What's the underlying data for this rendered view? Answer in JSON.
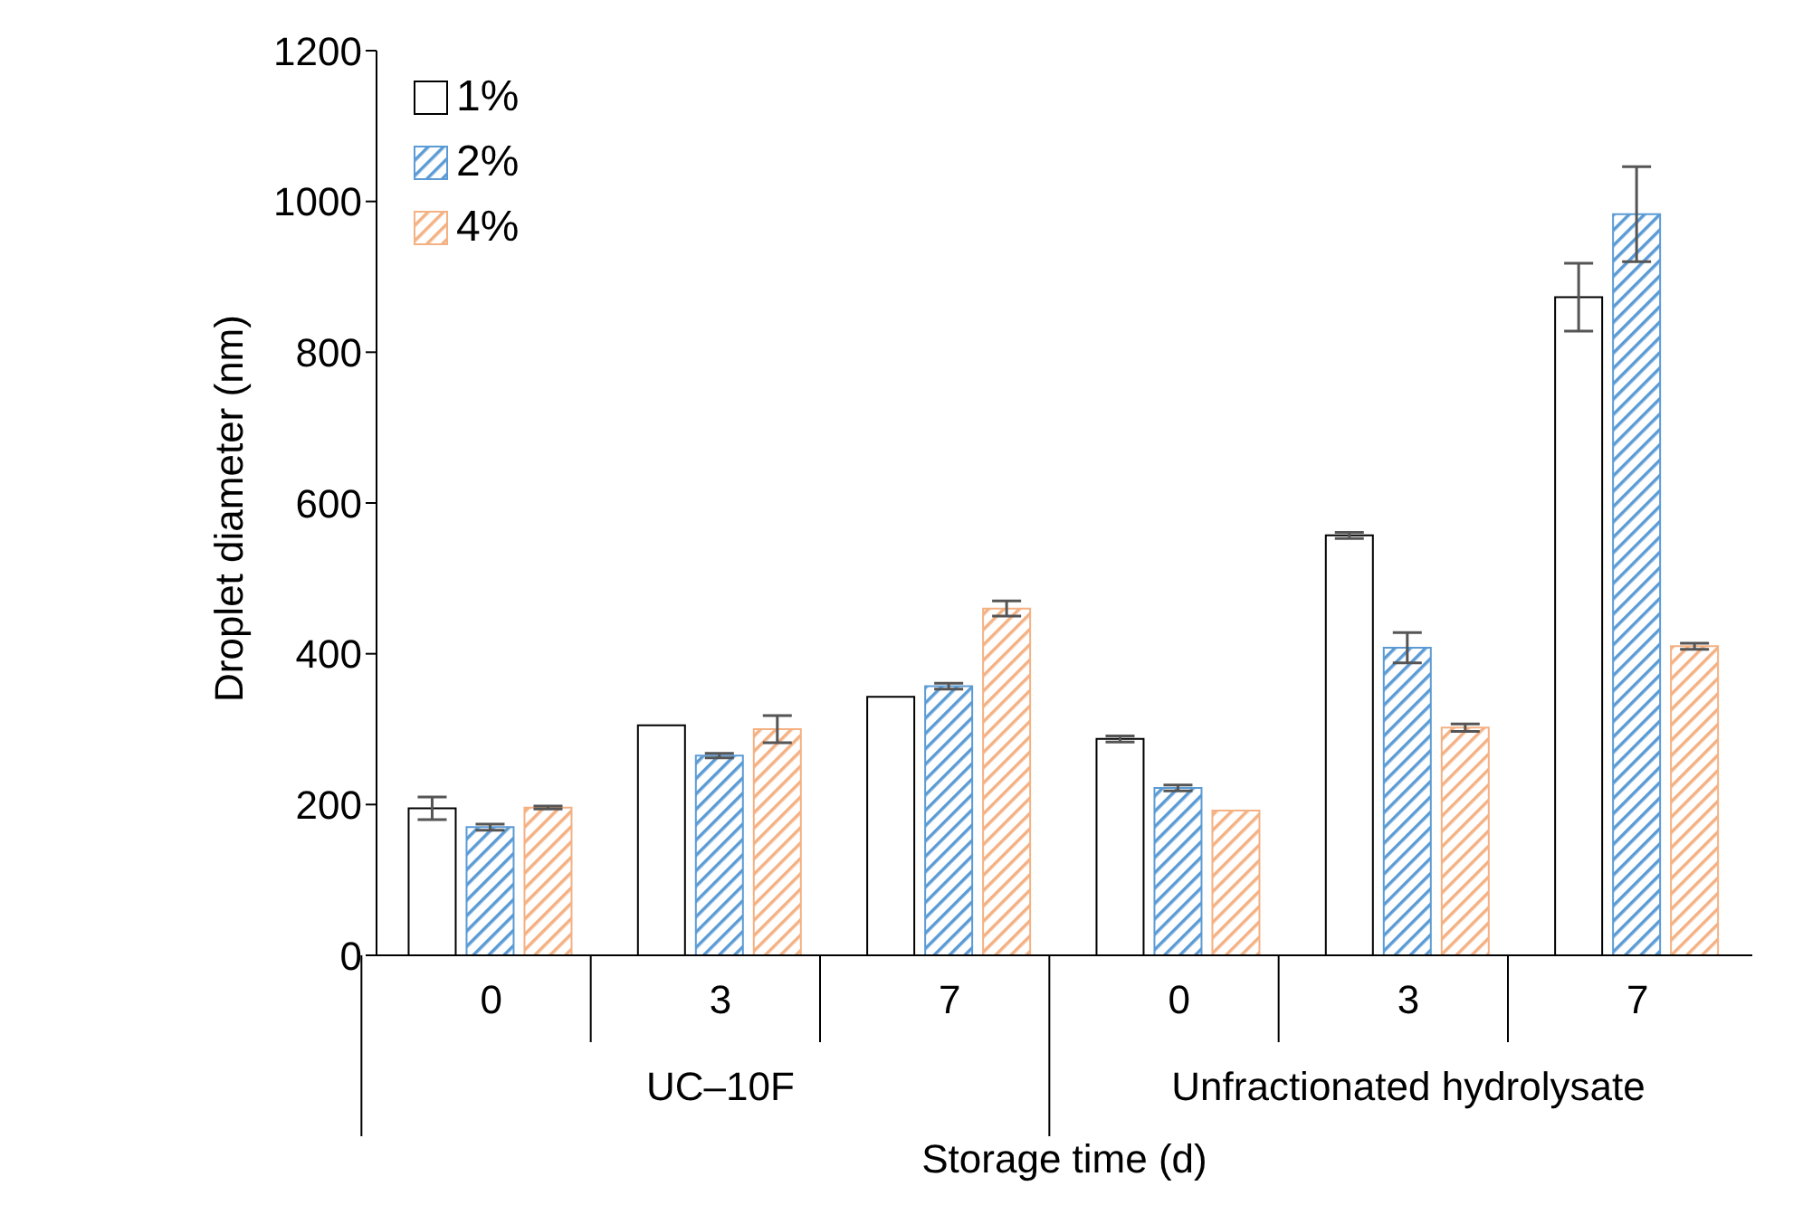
{
  "chart_data": {
    "type": "bar",
    "xlabel": "Storage time (d)",
    "ylabel": "Droplet diameter (nm)",
    "categories": [
      "0",
      "3",
      "7",
      "0",
      "3",
      "7"
    ],
    "annotations": [
      "UC–10F",
      "Unfractionated hydrolysate"
    ],
    "series": [
      {
        "name": "1%",
        "color": "#ffffff",
        "values": [
          195,
          305,
          343,
          287,
          557,
          873
        ],
        "errors": [
          15,
          null,
          null,
          4,
          4,
          45
        ]
      },
      {
        "name": "2%",
        "color": "#5b9bd5",
        "values": [
          170,
          265,
          357,
          222,
          408,
          983
        ],
        "errors": [
          4,
          3,
          4,
          4,
          20,
          63
        ]
      },
      {
        "name": "4%",
        "color": "#f4b183",
        "values": [
          196,
          300,
          460,
          192,
          302,
          410
        ],
        "errors": [
          2,
          18,
          10,
          null,
          5,
          4
        ]
      }
    ],
    "ylim": [
      0,
      1200
    ],
    "yticks": [
      0,
      200,
      400,
      600,
      800,
      1000,
      1200
    ],
    "grid": false,
    "legend": "top left"
  }
}
